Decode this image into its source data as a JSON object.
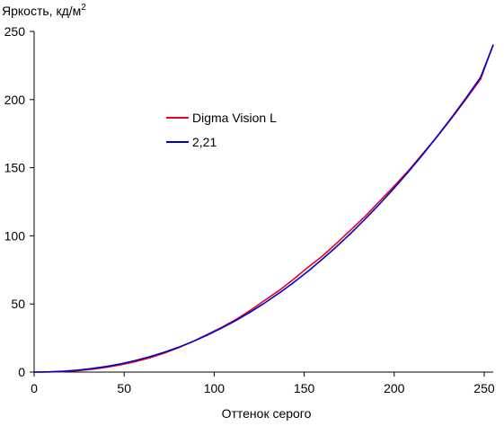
{
  "chart_data": {
    "type": "line",
    "title": "",
    "ylabel": "Яркость, кд/м",
    "ylabel_superscript": "2",
    "xlabel": "Оттенок серого",
    "xlim": [
      0,
      255
    ],
    "ylim": [
      0,
      250
    ],
    "x_ticks": [
      0,
      50,
      100,
      150,
      200,
      250
    ],
    "y_ticks": [
      0,
      50,
      100,
      150,
      200,
      250
    ],
    "grid": false,
    "legend_position": "center-left",
    "series": [
      {
        "name": "Digma Vision L",
        "color": "#e8001c",
        "x": [
          0,
          8,
          16,
          24,
          32,
          40,
          48,
          56,
          64,
          72,
          80,
          88,
          96,
          104,
          112,
          120,
          128,
          136,
          144,
          152,
          160,
          168,
          176,
          184,
          192,
          200,
          208,
          216,
          224,
          232,
          240,
          248,
          255
        ],
        "y": [
          0,
          0.1,
          0.4,
          1.0,
          2.0,
          3.5,
          5.3,
          7.6,
          10.4,
          13.8,
          17.8,
          22.4,
          27.5,
          32.7,
          38.5,
          45.2,
          52.6,
          59.8,
          68.0,
          76.8,
          85.0,
          94.5,
          104.5,
          114.5,
          125.5,
          136.5,
          148.0,
          160.5,
          173.0,
          186.5,
          200.5,
          215.0,
          240.5
        ]
      },
      {
        "name": "2,21",
        "color": "#0000cc",
        "x": [
          0,
          8,
          16,
          24,
          32,
          40,
          48,
          56,
          64,
          72,
          80,
          88,
          96,
          104,
          112,
          120,
          128,
          136,
          144,
          152,
          160,
          168,
          176,
          184,
          192,
          200,
          208,
          216,
          224,
          232,
          240,
          248,
          255
        ],
        "y": [
          0,
          0.1,
          0.6,
          1.4,
          2.6,
          4.1,
          6.0,
          8.4,
          11.2,
          14.4,
          18.1,
          22.3,
          27.0,
          32.2,
          37.8,
          44.0,
          50.7,
          57.9,
          65.6,
          73.9,
          82.8,
          92.1,
          102.0,
          112.5,
          123.5,
          135.1,
          147.2,
          159.9,
          173.2,
          187.0,
          201.4,
          216.4,
          240.0
        ]
      }
    ]
  }
}
